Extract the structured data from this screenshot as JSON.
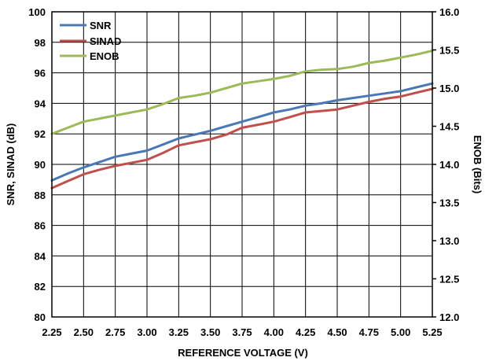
{
  "chart_data": {
    "type": "line",
    "x": [
      2.25,
      2.375,
      2.5,
      2.625,
      2.75,
      2.875,
      3.0,
      3.125,
      3.25,
      3.375,
      3.5,
      3.625,
      3.75,
      3.875,
      4.0,
      4.125,
      4.25,
      4.375,
      4.5,
      4.625,
      4.75,
      4.875,
      5.0,
      5.125,
      5.25
    ],
    "xlabel": "REFERENCE VOLTAGE (V)",
    "ylabel": "SNR, SINAD (dB)",
    "y2label": "ENOB (Bits)",
    "xlim": [
      2.25,
      5.25
    ],
    "ylim": [
      80,
      100
    ],
    "y2lim": [
      12.0,
      16.0
    ],
    "x_ticks": [
      "2.25",
      "2.50",
      "2.75",
      "3.00",
      "3.25",
      "3.50",
      "3.75",
      "4.00",
      "4.25",
      "4.50",
      "4.75",
      "5.00",
      "5.25"
    ],
    "y_ticks": [
      "80",
      "82",
      "84",
      "86",
      "88",
      "90",
      "92",
      "94",
      "96",
      "98",
      "100"
    ],
    "y2_ticks": [
      "12.0",
      "12.5",
      "13.0",
      "13.5",
      "14.0",
      "14.5",
      "15.0",
      "15.5",
      "16.0"
    ],
    "grid": true,
    "legend_position": "top-left",
    "series": [
      {
        "name": "SNR",
        "axis": "left",
        "color": "#4a78b5",
        "values": [
          88.95,
          89.4,
          89.8,
          90.15,
          90.5,
          90.7,
          90.9,
          91.3,
          91.7,
          91.95,
          92.2,
          92.5,
          92.8,
          93.1,
          93.4,
          93.6,
          93.85,
          94.0,
          94.2,
          94.35,
          94.5,
          94.65,
          94.8,
          95.05,
          95.3
        ]
      },
      {
        "name": "SINAD",
        "axis": "left",
        "color": "#c0504d",
        "values": [
          88.45,
          88.9,
          89.35,
          89.65,
          89.9,
          90.1,
          90.3,
          90.75,
          91.25,
          91.45,
          91.65,
          91.95,
          92.4,
          92.6,
          92.8,
          93.1,
          93.4,
          93.5,
          93.6,
          93.85,
          94.1,
          94.3,
          94.45,
          94.7,
          94.95
        ]
      },
      {
        "name": "ENOB",
        "axis": "right",
        "color": "#9bbb59",
        "values": [
          14.4,
          14.48,
          14.56,
          14.6,
          14.64,
          14.68,
          14.72,
          14.79,
          14.87,
          14.9,
          14.94,
          15.0,
          15.06,
          15.09,
          15.12,
          15.16,
          15.22,
          15.24,
          15.25,
          15.28,
          15.33,
          15.36,
          15.4,
          15.44,
          15.49
        ]
      }
    ]
  }
}
